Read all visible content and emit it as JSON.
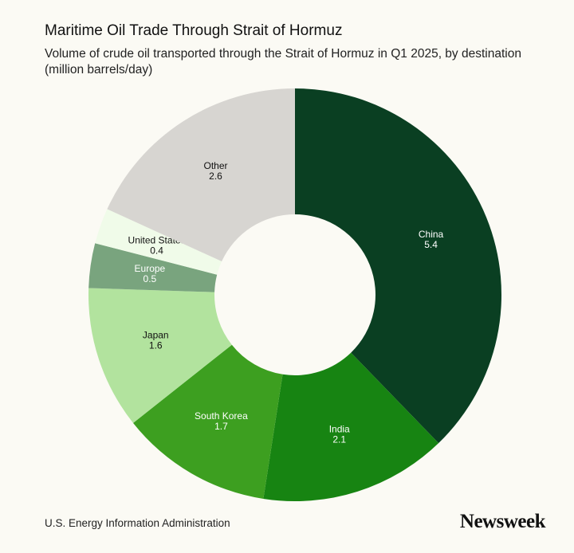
{
  "header": {
    "title": "Maritime Oil Trade Through Strait of Hormuz",
    "subtitle": "Volume of crude oil transported through the Strait of Hormuz in Q1 2025, by destination (million barrels/day)"
  },
  "chart_data": {
    "type": "pie",
    "donut": true,
    "title": "Maritime Oil Trade Through Strait of Hormuz",
    "subtitle": "Volume of crude oil transported through the Strait of Hormuz in Q1 2025, by destination (million barrels/day)",
    "unit": "million barrels/day",
    "categories": [
      "China",
      "India",
      "South Korea",
      "Japan",
      "Europe",
      "United States",
      "Other"
    ],
    "values": [
      5.4,
      2.1,
      1.7,
      1.6,
      0.5,
      0.4,
      2.6
    ],
    "value_labels": [
      "5.4",
      "2.1",
      "1.7",
      "1.6",
      "0.5",
      "0.4",
      "2.6"
    ],
    "colors": [
      "#0a3f22",
      "#178412",
      "#3d9f20",
      "#b2e39e",
      "#79a47e",
      "#f0fbe9",
      "#d7d5d1"
    ],
    "label_colors": [
      "#ffffff",
      "#ffffff",
      "#ffffff",
      "#111111",
      "#ffffff",
      "#111111",
      "#111111"
    ]
  },
  "footer": {
    "source": "U.S. Energy Information Administration",
    "logo": "Newsweek"
  }
}
